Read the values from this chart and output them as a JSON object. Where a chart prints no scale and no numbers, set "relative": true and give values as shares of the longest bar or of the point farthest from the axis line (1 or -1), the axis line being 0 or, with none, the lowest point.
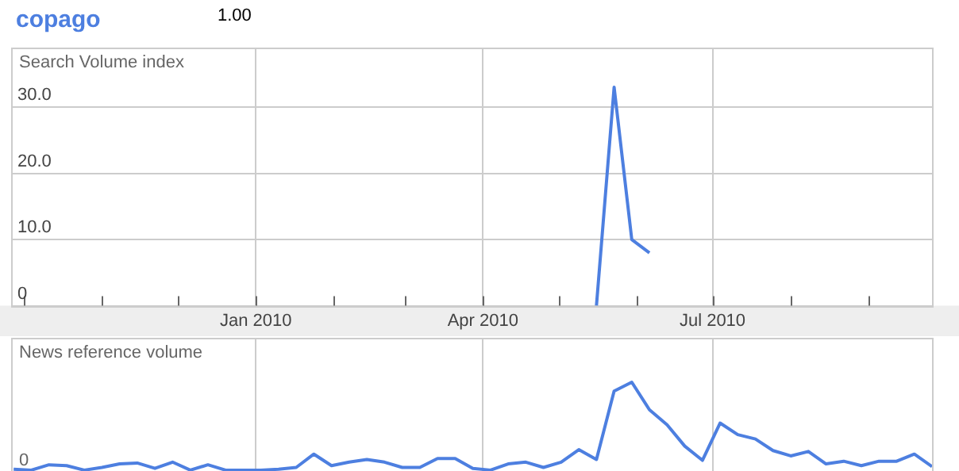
{
  "chart_data": [
    {
      "type": "line",
      "ylabel": "Search Volume index",
      "legend": "top left",
      "annotations": [
        "1.00"
      ],
      "xlim": [
        "2009-09-26",
        "2010-09-26"
      ],
      "xticks": [
        {
          "value": "2009-10-01",
          "label": null
        },
        {
          "value": "2009-11-01",
          "label": null
        },
        {
          "value": "2009-12-01",
          "label": null
        },
        {
          "value": "2010-01-01",
          "label": "Jan 2010"
        },
        {
          "value": "2010-02-01",
          "label": null
        },
        {
          "value": "2010-03-01",
          "label": null
        },
        {
          "value": "2010-04-01",
          "label": "Apr 2010"
        },
        {
          "value": "2010-05-01",
          "label": null
        },
        {
          "value": "2010-06-01",
          "label": null
        },
        {
          "value": "2010-07-01",
          "label": "Jul 2010"
        },
        {
          "value": "2010-08-01",
          "label": null
        },
        {
          "value": "2010-09-01",
          "label": null
        }
      ],
      "ylim": [
        0,
        39
      ],
      "yticks": [
        {
          "value": 0,
          "label": "0"
        },
        {
          "value": 10,
          "label": "10.0"
        },
        {
          "value": 20,
          "label": "20.0"
        },
        {
          "value": 30,
          "label": "30.0"
        }
      ],
      "grid": true,
      "series": [
        {
          "name": "copago",
          "color": "#4d7fe0",
          "x": [
            "2010-05-16",
            "2010-05-23",
            "2010-05-30",
            "2010-06-06"
          ],
          "values": [
            0,
            33,
            10,
            8
          ]
        }
      ]
    },
    {
      "type": "line",
      "ylabel": "News reference volume",
      "relative": true,
      "tick_labels": false,
      "annotations": [
        "0"
      ],
      "xlim": [
        "2009-09-26",
        "2010-09-26"
      ],
      "xticks": [
        "2010-01-01",
        "2010-04-01",
        "2010-07-01"
      ],
      "grid": "x",
      "x": [
        "2009-09-27",
        "2009-10-04",
        "2009-10-11",
        "2009-10-18",
        "2009-10-25",
        "2009-11-01",
        "2009-11-08",
        "2009-11-15",
        "2009-11-22",
        "2009-11-29",
        "2009-12-06",
        "2009-12-13",
        "2009-12-20",
        "2009-12-27",
        "2010-01-03",
        "2010-01-10",
        "2010-01-17",
        "2010-01-24",
        "2010-01-31",
        "2010-02-07",
        "2010-02-14",
        "2010-02-21",
        "2010-02-28",
        "2010-03-07",
        "2010-03-14",
        "2010-03-21",
        "2010-03-28",
        "2010-04-04",
        "2010-04-11",
        "2010-04-18",
        "2010-04-25",
        "2010-05-02",
        "2010-05-09",
        "2010-05-16",
        "2010-05-23",
        "2010-05-30",
        "2010-06-06",
        "2010-06-13",
        "2010-06-20",
        "2010-06-27",
        "2010-07-04",
        "2010-07-11",
        "2010-07-18",
        "2010-07-25",
        "2010-08-01",
        "2010-08-08",
        "2010-08-15",
        "2010-08-22",
        "2010-08-29",
        "2010-09-05",
        "2010-09-12",
        "2010-09-19",
        "2010-09-26"
      ],
      "series": [
        {
          "color": "#4d7fe0",
          "values": [
            0.02,
            0.01,
            0.07,
            0.06,
            0.01,
            0.04,
            0.08,
            0.09,
            0.03,
            0.1,
            0.01,
            0.07,
            0.01,
            0.01,
            0.01,
            0.02,
            0.04,
            0.19,
            0.06,
            0.1,
            0.13,
            0.1,
            0.04,
            0.04,
            0.14,
            0.14,
            0.03,
            0.01,
            0.08,
            0.1,
            0.04,
            0.1,
            0.24,
            0.13,
            0.9,
            1,
            0.69,
            0.52,
            0.28,
            0.12,
            0.54,
            0.41,
            0.36,
            0.23,
            0.17,
            0.22,
            0.08,
            0.11,
            0.06,
            0.11,
            0.11,
            0.19,
            0.05
          ]
        }
      ]
    }
  ]
}
